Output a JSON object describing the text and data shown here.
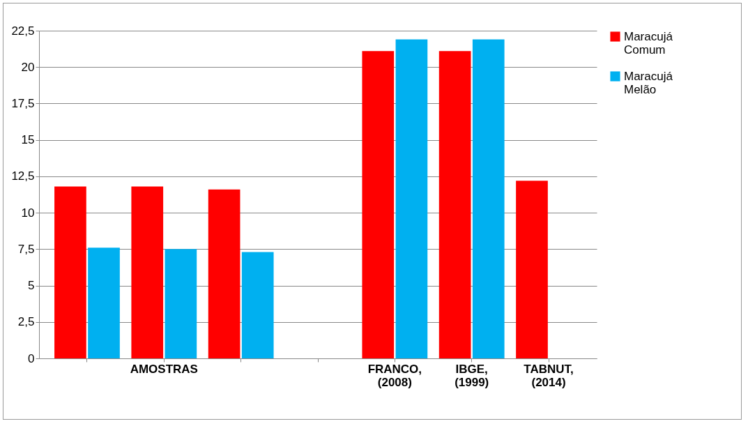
{
  "chart_data": {
    "type": "bar",
    "categories": [
      null,
      "AMOSTRAS",
      null,
      null,
      "FRANCO, (2008)",
      "IBGE, (1999)",
      "TABNUT, (2014)"
    ],
    "series": [
      {
        "name": "Maracujá Comum",
        "color": "#ff0000",
        "values": [
          11.8,
          11.8,
          11.6,
          null,
          21.1,
          21.1,
          12.2
        ]
      },
      {
        "name": "Maracujá Melão",
        "color": "#00b0f0",
        "values": [
          7.6,
          7.5,
          7.3,
          null,
          21.9,
          21.9,
          null
        ]
      }
    ],
    "ylim": [
      0,
      22.5
    ],
    "yticks": [
      0,
      {
        "value": 2.5,
        "label": "2,5"
      },
      5,
      {
        "value": 7.5,
        "label": "7,5"
      },
      10,
      {
        "value": 12.5,
        "label": "12,5"
      },
      15,
      {
        "value": 17.5,
        "label": "17,5"
      },
      20,
      {
        "value": 22.5,
        "label": "22,5"
      }
    ],
    "grid": "y",
    "legend": "right"
  }
}
